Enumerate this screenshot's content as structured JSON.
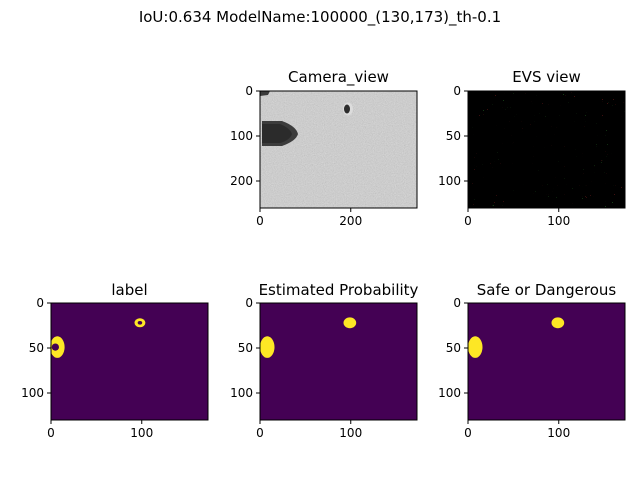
{
  "figure": {
    "suptitle": "IoU:0.634  ModelName:100000_(130,173)_th-0.1"
  },
  "colors": {
    "viridis_low": "#440154",
    "viridis_high": "#fde725",
    "axis": "#000000"
  },
  "chart_data": [
    {
      "type": "heatmap",
      "title": "Camera_view",
      "image": "grayscale camera frame",
      "xlim": [
        0,
        346
      ],
      "ylim": [
        260,
        0
      ],
      "xticks": [
        0,
        200
      ],
      "yticks": [
        0,
        100,
        200
      ]
    },
    {
      "type": "heatmap",
      "title": "EVS view",
      "image": "event-camera frame (black background, red and green event pixels)",
      "xlim": [
        0,
        173
      ],
      "ylim": [
        130,
        0
      ],
      "xticks": [
        0,
        100
      ],
      "yticks": [
        0,
        50,
        100
      ]
    },
    {
      "type": "heatmap",
      "title": "label",
      "colormap": "viridis",
      "xlim": [
        0,
        173
      ],
      "ylim": [
        130,
        0
      ],
      "xticks": [
        0,
        100
      ],
      "yticks": [
        0,
        50,
        100
      ],
      "regions": [
        {
          "shape": "ring",
          "cx": 7,
          "cy": 49,
          "rx": 8,
          "ry": 12,
          "hole_rx": 4,
          "hole_ry": 4
        },
        {
          "shape": "ring",
          "cx": 98,
          "cy": 22,
          "rx": 6,
          "ry": 5,
          "hole_rx": 2.5,
          "hole_ry": 2
        }
      ]
    },
    {
      "type": "heatmap",
      "title": "Estimated Probability",
      "colormap": "viridis",
      "xlim": [
        0,
        173
      ],
      "ylim": [
        130,
        0
      ],
      "xticks": [
        0,
        100
      ],
      "yticks": [
        0,
        50,
        100
      ],
      "regions": [
        {
          "shape": "blob",
          "cx": 8,
          "cy": 49,
          "rx": 8,
          "ry": 12
        },
        {
          "shape": "blob",
          "cx": 99,
          "cy": 22,
          "rx": 7,
          "ry": 6
        }
      ]
    },
    {
      "type": "heatmap",
      "title": "Safe or Dangerous",
      "colormap": "viridis",
      "xlim": [
        0,
        173
      ],
      "ylim": [
        130,
        0
      ],
      "xticks": [
        0,
        100
      ],
      "yticks": [
        0,
        50,
        100
      ],
      "regions": [
        {
          "shape": "blob",
          "cx": 8,
          "cy": 49,
          "rx": 8,
          "ry": 12
        },
        {
          "shape": "blob",
          "cx": 99,
          "cy": 22,
          "rx": 7,
          "ry": 6
        }
      ]
    }
  ]
}
